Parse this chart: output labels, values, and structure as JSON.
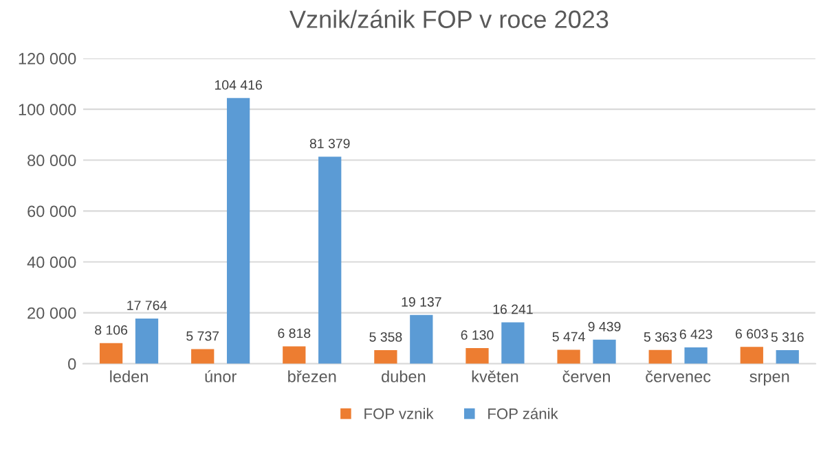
{
  "chart_data": {
    "type": "bar",
    "title": "Vznik/zánik FOP v roce 2023",
    "categories": [
      "leden",
      "únor",
      "březen",
      "duben",
      "květen",
      "červen",
      "červenec",
      "srpen"
    ],
    "series": [
      {
        "name": "FOP vznik",
        "color": "#ed7d31",
        "values": [
          8106,
          5737,
          6818,
          5358,
          6130,
          5474,
          5363,
          6603
        ],
        "value_labels": [
          "8 106",
          "5 737",
          "6 818",
          "5 358",
          "6 130",
          "5 474",
          "5 363",
          "6 603"
        ]
      },
      {
        "name": "FOP zánik",
        "color": "#5b9bd5",
        "values": [
          17764,
          104416,
          81379,
          19137,
          16241,
          9439,
          6423,
          5316
        ],
        "value_labels": [
          "17 764",
          "104 416",
          "81 379",
          "19 137",
          "16 241",
          "9 439",
          "6 423",
          "5 316"
        ]
      }
    ],
    "ylim": [
      0,
      120000
    ],
    "yticks": [
      {
        "value": 0,
        "label": "0"
      },
      {
        "value": 20000,
        "label": "20 000"
      },
      {
        "value": 40000,
        "label": "40 000"
      },
      {
        "value": 60000,
        "label": "60 000"
      },
      {
        "value": 80000,
        "label": "80 000"
      },
      {
        "value": 100000,
        "label": "100 000"
      },
      {
        "value": 120000,
        "label": "120 000"
      }
    ],
    "grid": "y",
    "legend": "bottom"
  }
}
